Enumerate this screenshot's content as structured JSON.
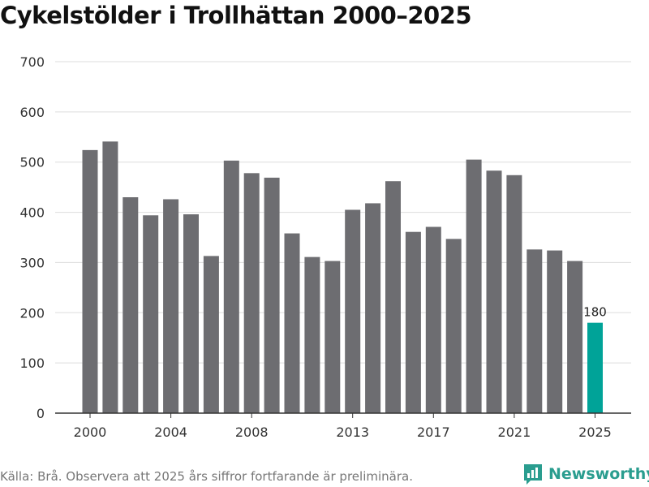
{
  "chart_data": {
    "type": "bar",
    "title": "Cykelstölder i Trollhättan 2000–2025",
    "xlabel": "",
    "ylabel": "",
    "ylim": [
      0,
      700
    ],
    "yticks": [
      0,
      100,
      200,
      300,
      400,
      500,
      600,
      700
    ],
    "xticks": [
      "2000",
      "2004",
      "2008",
      "2013",
      "2017",
      "2021",
      "2025"
    ],
    "categories": [
      "2000",
      "2001",
      "2002",
      "2003",
      "2004",
      "2005",
      "2006",
      "2007",
      "2008",
      "2009",
      "2010",
      "2011",
      "2012",
      "2013",
      "2014",
      "2015",
      "2016",
      "2017",
      "2018",
      "2019",
      "2020",
      "2021",
      "2022",
      "2023",
      "2024",
      "2025"
    ],
    "values": [
      524,
      541,
      430,
      394,
      426,
      396,
      313,
      503,
      478,
      469,
      358,
      311,
      303,
      405,
      418,
      462,
      361,
      371,
      347,
      505,
      483,
      474,
      326,
      324,
      303,
      180
    ],
    "annotations": [
      {
        "category": "2025",
        "text": "180"
      }
    ],
    "colors": {
      "default": "#6d6d71",
      "highlight": "#00a398",
      "grid": "#dddddd",
      "axis": "#333333"
    },
    "grid": true
  },
  "footer": {
    "source": "Källa: Brå. Observera att 2025 års siffror fortfarande är preliminära."
  },
  "brand": {
    "name": "Newsworthy",
    "icon": "newsworthy-logo-icon",
    "color": "#2a9d8f"
  }
}
